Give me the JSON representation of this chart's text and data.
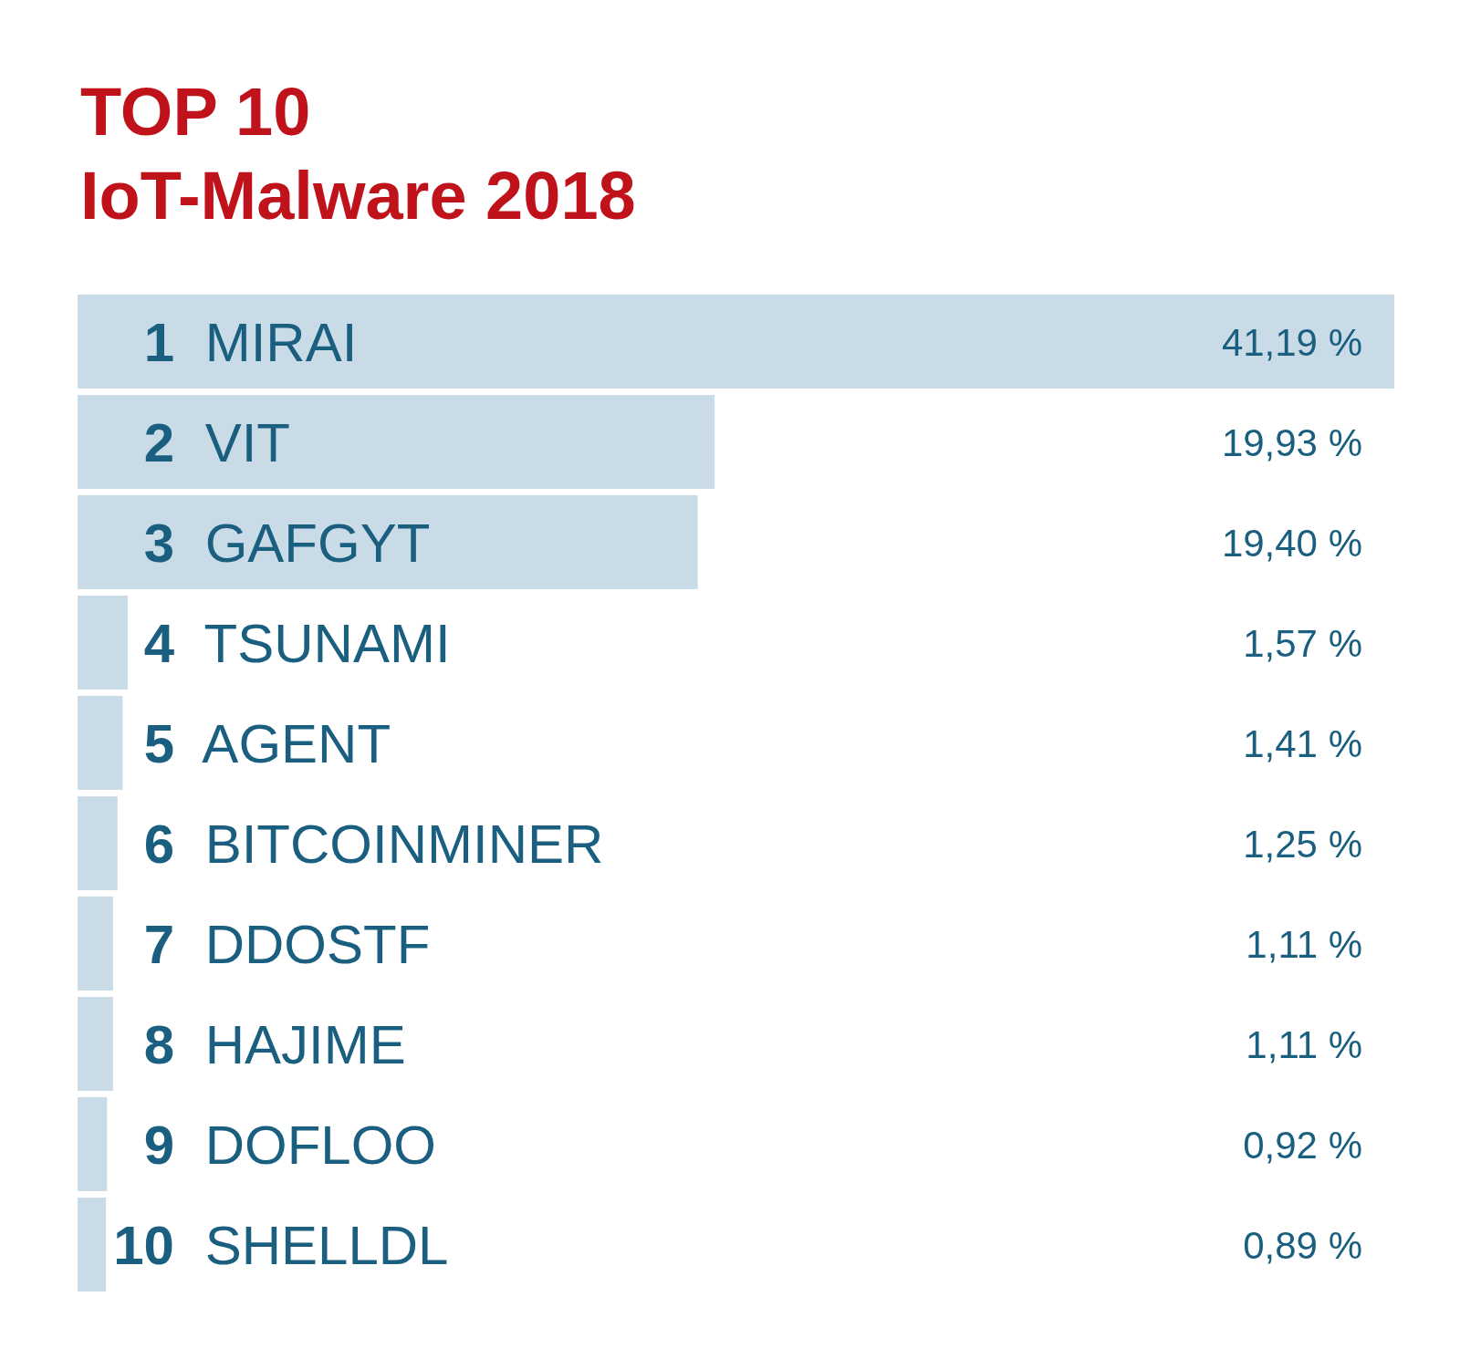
{
  "chart_data": {
    "type": "bar",
    "orientation": "horizontal",
    "title": "TOP 10",
    "subtitle": "IoT-Malware 2018",
    "categories": [
      "1 MIRAI",
      "2 VIT",
      "3 GAFGYT",
      "4 TSUNAMI",
      "5 AGENT",
      "6 BITCOINMINER",
      "7 DDOSTF",
      "8 HAJIME",
      "9 DOFLOO",
      "10 SHELLDL"
    ],
    "values": [
      41.19,
      19.93,
      19.4,
      1.57,
      1.41,
      1.25,
      1.11,
      1.11,
      0.92,
      0.89
    ],
    "value_labels": [
      "41,19 %",
      "19,93 %",
      "19,40 %",
      "1,57 %",
      "1,41 %",
      "1,25 %",
      "1,11 %",
      "1,11 %",
      "0,92 %",
      "0,89 %"
    ],
    "color": "#c8dbe7"
  }
}
